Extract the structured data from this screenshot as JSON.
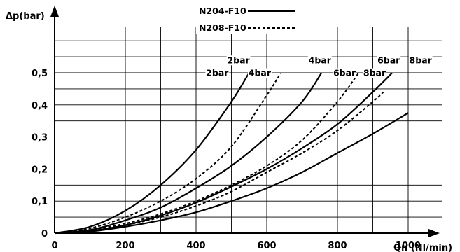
{
  "chart_data": {
    "type": "line",
    "xlabel": "Qn (Nl/min)",
    "ylabel": "Δp(bar)",
    "xlim": [
      0,
      1000
    ],
    "ylim": [
      0,
      0.5
    ],
    "x_ticks": [
      "0",
      "200",
      "400",
      "600",
      "800",
      "1000"
    ],
    "y_ticks": [
      "0",
      "0,1",
      "0,2",
      "0,3",
      "0,4",
      "0,5"
    ],
    "grid": true,
    "legend": {
      "placement": "top",
      "entries": [
        {
          "label": "N204-F10",
          "style": "solid"
        },
        {
          "label": "N208-F10",
          "style": "dashed"
        }
      ]
    },
    "series": [
      {
        "name": "N204-F10",
        "label": "2bar",
        "style": "solid",
        "x": [
          0,
          100,
          200,
          300,
          400,
          500,
          550
        ],
        "y": [
          0,
          0.02,
          0.07,
          0.15,
          0.26,
          0.41,
          0.5
        ]
      },
      {
        "name": "N204-F10",
        "label": "4bar",
        "style": "solid",
        "x": [
          0,
          100,
          200,
          300,
          400,
          500,
          600,
          700,
          755
        ],
        "y": [
          0,
          0.01,
          0.04,
          0.08,
          0.14,
          0.21,
          0.3,
          0.41,
          0.5
        ]
      },
      {
        "name": "N204-F10",
        "label": "6bar",
        "style": "solid",
        "x": [
          0,
          100,
          200,
          300,
          400,
          500,
          600,
          700,
          800,
          900,
          955
        ],
        "y": [
          0,
          0.007,
          0.025,
          0.055,
          0.095,
          0.145,
          0.2,
          0.265,
          0.34,
          0.44,
          0.5
        ]
      },
      {
        "name": "N204-F10",
        "label": "8bar",
        "style": "solid",
        "x": [
          0,
          100,
          200,
          300,
          400,
          500,
          600,
          700,
          800,
          900,
          1000
        ],
        "y": [
          0,
          0.005,
          0.02,
          0.04,
          0.065,
          0.1,
          0.14,
          0.19,
          0.25,
          0.31,
          0.375
        ]
      },
      {
        "name": "N208-F10",
        "label": "2bar",
        "style": "dashed",
        "x": [
          0,
          100,
          200,
          300,
          400,
          500,
          600,
          640
        ],
        "y": [
          0,
          0.015,
          0.05,
          0.1,
          0.17,
          0.27,
          0.43,
          0.5
        ]
      },
      {
        "name": "N208-F10",
        "label": "4bar",
        "style": "dashed",
        "x": [
          0,
          100,
          200,
          300,
          400,
          500,
          600,
          700,
          800,
          860
        ],
        "y": [
          0,
          0.01,
          0.03,
          0.06,
          0.1,
          0.15,
          0.21,
          0.29,
          0.41,
          0.5
        ]
      },
      {
        "name": "N208-F10",
        "label": "6bar",
        "style": "dashed",
        "x": [
          0,
          100,
          200,
          300,
          400,
          500,
          600,
          700,
          800,
          900,
          930
        ],
        "y": [
          0,
          0.008,
          0.025,
          0.05,
          0.085,
          0.13,
          0.19,
          0.25,
          0.32,
          0.41,
          0.44
        ]
      }
    ],
    "annotations": [
      {
        "text": "2bar",
        "x": 520,
        "y": 0.53
      },
      {
        "text": "2bar",
        "x": 460,
        "y": 0.49
      },
      {
        "text": "4bar",
        "x": 750,
        "y": 0.53
      },
      {
        "text": "4bar",
        "x": 580,
        "y": 0.49
      },
      {
        "text": "6bar",
        "x": 820,
        "y": 0.49
      },
      {
        "text": "8bar",
        "x": 905,
        "y": 0.49
      },
      {
        "text": "6bar",
        "x": 945,
        "y": 0.53
      },
      {
        "text": "8bar",
        "x": 1035,
        "y": 0.53
      }
    ]
  }
}
